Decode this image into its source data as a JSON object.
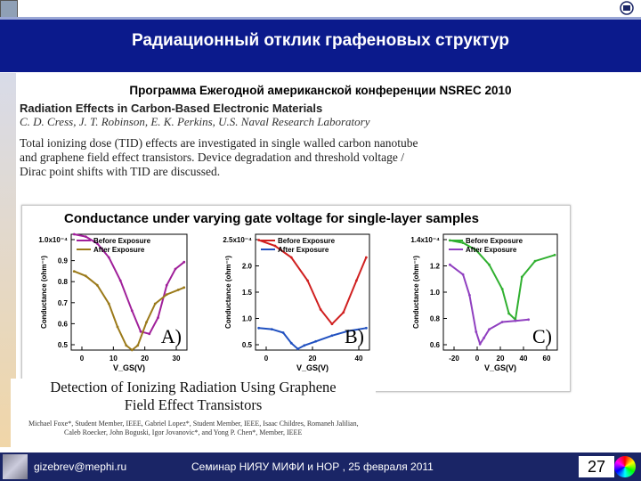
{
  "slide": {
    "title": "Радиационный отклик графеновых структур",
    "subtitle": "Программа Ежегодной американской конференции NSREC 2010"
  },
  "paper": {
    "title": "Radiation Effects in Carbon-Based Electronic Materials",
    "authors": "C. D. Cress, J. T. Robinson, E. K. Perkins, U.S. Naval Research Laboratory",
    "abstract_lines": [
      "Total ionizing dose (TID) effects are investigated in single walled carbon nanotube",
      "and graphene field effect transistors. Device degradation and threshold voltage /",
      "Dirac point shifts with TID are discussed."
    ]
  },
  "figure": {
    "title": "Conductance under varying gate voltage for single-layer samples"
  },
  "chart_data": [
    {
      "type": "line",
      "panel_label": "A)",
      "ylabel": "Conductance (ohm⁻¹)",
      "xlabel": "V_GS(V)",
      "y_tick_labels": [
        "0.5",
        "0.6",
        "0.7",
        "0.8",
        "0.9",
        "1.0x10⁻⁴"
      ],
      "x_tick_labels": [
        "0",
        "10",
        "20",
        "30"
      ],
      "ylim": [
        0.5,
        1.0
      ],
      "xlim": [
        -3,
        37
      ],
      "series": [
        {
          "name": "Before Exposure",
          "color": "#a0209a",
          "x": [
            -2,
            2,
            6,
            10,
            14,
            18,
            21,
            24,
            27,
            30,
            33,
            36
          ],
          "y": [
            1.0,
            0.99,
            0.96,
            0.9,
            0.8,
            0.67,
            0.58,
            0.57,
            0.64,
            0.78,
            0.85,
            0.88
          ]
        },
        {
          "name": "After Exposure",
          "color": "#9b7a1a",
          "x": [
            -2,
            2,
            6,
            10,
            13,
            16,
            18,
            20,
            23,
            26,
            30,
            34,
            36
          ],
          "y": [
            0.84,
            0.82,
            0.78,
            0.7,
            0.6,
            0.52,
            0.5,
            0.52,
            0.62,
            0.7,
            0.74,
            0.76,
            0.77
          ]
        }
      ]
    },
    {
      "type": "line",
      "panel_label": "B)",
      "ylabel": "Conductance (ohm⁻¹)",
      "xlabel": "V_GS(V)",
      "y_tick_labels": [
        "0.5",
        "1.0",
        "1.5",
        "2.0",
        "2.5x10⁻⁴"
      ],
      "x_tick_labels": [
        "0",
        "20",
        "40"
      ],
      "ylim": [
        0.5,
        2.5
      ],
      "xlim": [
        -22,
        48
      ],
      "series": [
        {
          "name": "Before Exposure",
          "color": "#d02020",
          "x": [
            -20,
            -10,
            0,
            10,
            18,
            25,
            32,
            40,
            46
          ],
          "y": [
            2.4,
            2.3,
            2.1,
            1.7,
            1.2,
            0.95,
            1.15,
            1.7,
            2.1
          ]
        },
        {
          "name": "After Exposure",
          "color": "#2050c0",
          "x": [
            -20,
            -12,
            -5,
            0,
            4,
            8,
            15,
            25,
            35,
            46
          ],
          "y": [
            0.88,
            0.86,
            0.8,
            0.62,
            0.52,
            0.58,
            0.65,
            0.75,
            0.83,
            0.88
          ]
        }
      ]
    },
    {
      "type": "line",
      "panel_label": "C)",
      "ylabel": "Conductance (ohm⁻¹)",
      "xlabel": "V_GS(V)",
      "y_tick_labels": [
        "0.6",
        "0.8",
        "1.0",
        "1.2",
        "1.4x10⁻⁴"
      ],
      "x_tick_labels": [
        "-20",
        "0",
        "20",
        "40",
        "60"
      ],
      "ylim": [
        0.5,
        1.45
      ],
      "xlim": [
        -25,
        62
      ],
      "series": [
        {
          "name": "Before Exposure",
          "color": "#30b030",
          "x": [
            -20,
            -10,
            0,
            10,
            20,
            25,
            30,
            35,
            45,
            60
          ],
          "y": [
            1.4,
            1.38,
            1.32,
            1.2,
            1.0,
            0.8,
            0.75,
            1.1,
            1.23,
            1.28
          ]
        },
        {
          "name": "After Exposure",
          "color": "#9040c0",
          "x": [
            -20,
            -10,
            -5,
            0,
            3,
            6,
            10,
            20,
            30,
            40
          ],
          "y": [
            1.2,
            1.12,
            0.95,
            0.65,
            0.55,
            0.6,
            0.67,
            0.73,
            0.74,
            0.75
          ]
        }
      ]
    }
  ],
  "detection": {
    "title_line1": "Detection of Ionizing Radiation Using Graphene",
    "title_line2": "Field Effect Transistors",
    "authors_line1": "Michael Foxe*, Student Member, IEEE, Gabriel Lopez*, Student Member, IEEE, Isaac Childres, Romaneh Jalilian,",
    "authors_line2": "Caleb Roecker, John Boguski, Igor Jovanovic*, and Yong P. Chen*, Member, IEEE"
  },
  "footer": {
    "email": "gizebrev@mephi.ru",
    "seminar": "Семинар  НИЯУ МИФИ и НОР ,   25 февраля  2011",
    "page_number": "27"
  }
}
